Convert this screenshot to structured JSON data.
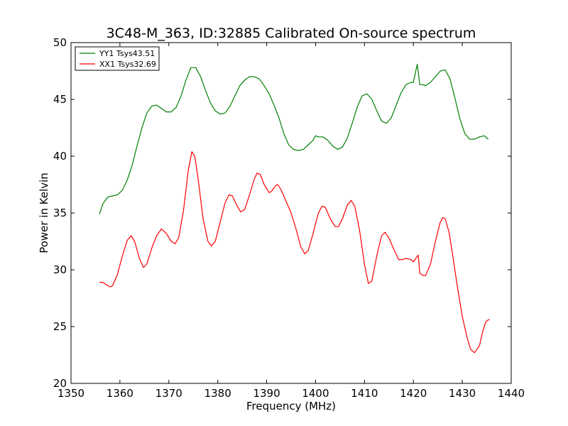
{
  "chart_data": {
    "type": "line",
    "title": "3C48-M_363, ID:32885 Calibrated On-source spectrum",
    "xlabel": "Frequency (MHz)",
    "ylabel": "Power in Kelvin",
    "xlim": [
      1350,
      1440
    ],
    "ylim": [
      20,
      50
    ],
    "xticks": [
      "1350",
      "1360",
      "1370",
      "1380",
      "1390",
      "1400",
      "1410",
      "1420",
      "1430",
      "1440"
    ],
    "yticks": [
      "20",
      "25",
      "30",
      "35",
      "40",
      "45",
      "50"
    ],
    "grid": false,
    "legend_position": "top-left",
    "series": [
      {
        "name": "YY1 Tsys43.51",
        "color": "#008000",
        "points": [
          [
            1355.8,
            34.9
          ],
          [
            1356.5,
            35.8
          ],
          [
            1357.5,
            36.4
          ],
          [
            1358.5,
            36.5
          ],
          [
            1359.5,
            36.6
          ],
          [
            1360.5,
            37.0
          ],
          [
            1361.5,
            37.9
          ],
          [
            1362.5,
            39.2
          ],
          [
            1363.5,
            40.9
          ],
          [
            1364.5,
            42.5
          ],
          [
            1365.5,
            43.8
          ],
          [
            1366.5,
            44.4
          ],
          [
            1367.5,
            44.5
          ],
          [
            1368.5,
            44.2
          ],
          [
            1369.5,
            43.9
          ],
          [
            1370.5,
            43.9
          ],
          [
            1371.5,
            44.3
          ],
          [
            1372.5,
            45.3
          ],
          [
            1373.5,
            46.7
          ],
          [
            1374.5,
            47.8
          ],
          [
            1375.5,
            47.8
          ],
          [
            1376.5,
            47.0
          ],
          [
            1377.5,
            45.8
          ],
          [
            1378.5,
            44.7
          ],
          [
            1379.5,
            44.0
          ],
          [
            1380.5,
            43.7
          ],
          [
            1381.5,
            43.8
          ],
          [
            1382.5,
            44.4
          ],
          [
            1383.5,
            45.3
          ],
          [
            1384.5,
            46.2
          ],
          [
            1385.5,
            46.7
          ],
          [
            1386.5,
            47.0
          ],
          [
            1387.5,
            47.0
          ],
          [
            1388.5,
            46.8
          ],
          [
            1389.5,
            46.2
          ],
          [
            1390.5,
            45.5
          ],
          [
            1391.5,
            44.5
          ],
          [
            1392.5,
            43.4
          ],
          [
            1393.5,
            42.0
          ],
          [
            1394.5,
            41.0
          ],
          [
            1395.5,
            40.6
          ],
          [
            1396.5,
            40.5
          ],
          [
            1397.5,
            40.6
          ],
          [
            1398.5,
            41.0
          ],
          [
            1399.5,
            41.4
          ],
          [
            1400.0,
            41.8
          ],
          [
            1400.5,
            41.7
          ],
          [
            1401.5,
            41.7
          ],
          [
            1402.5,
            41.4
          ],
          [
            1403.5,
            40.9
          ],
          [
            1404.5,
            40.6
          ],
          [
            1405.5,
            40.8
          ],
          [
            1406.5,
            41.6
          ],
          [
            1407.5,
            42.9
          ],
          [
            1408.5,
            44.3
          ],
          [
            1409.5,
            45.3
          ],
          [
            1410.5,
            45.5
          ],
          [
            1411.5,
            45.0
          ],
          [
            1412.5,
            44.0
          ],
          [
            1413.5,
            43.1
          ],
          [
            1414.5,
            42.9
          ],
          [
            1415.5,
            43.4
          ],
          [
            1416.5,
            44.5
          ],
          [
            1417.5,
            45.6
          ],
          [
            1418.5,
            46.3
          ],
          [
            1419.5,
            46.5
          ],
          [
            1420.0,
            46.5
          ],
          [
            1420.8,
            48.1
          ],
          [
            1421.3,
            46.3
          ],
          [
            1422.0,
            46.3
          ],
          [
            1422.5,
            46.2
          ],
          [
            1423.5,
            46.5
          ],
          [
            1424.5,
            47.0
          ],
          [
            1425.5,
            47.5
          ],
          [
            1426.5,
            47.6
          ],
          [
            1427.5,
            46.8
          ],
          [
            1428.5,
            45.1
          ],
          [
            1429.5,
            43.3
          ],
          [
            1430.5,
            42.0
          ],
          [
            1431.5,
            41.5
          ],
          [
            1432.5,
            41.5
          ],
          [
            1433.5,
            41.7
          ],
          [
            1434.5,
            41.8
          ],
          [
            1435.3,
            41.5
          ]
        ]
      },
      {
        "name": "XX1 Tsys32.69",
        "color": "#ff0000",
        "points": [
          [
            1355.8,
            28.9
          ],
          [
            1356.5,
            28.9
          ],
          [
            1357.5,
            28.6
          ],
          [
            1358.0,
            28.5
          ],
          [
            1358.5,
            28.6
          ],
          [
            1359.5,
            29.6
          ],
          [
            1360.5,
            31.2
          ],
          [
            1361.5,
            32.6
          ],
          [
            1362.3,
            33.0
          ],
          [
            1363.0,
            32.5
          ],
          [
            1364.0,
            31.0
          ],
          [
            1364.8,
            30.2
          ],
          [
            1365.5,
            30.5
          ],
          [
            1366.5,
            31.9
          ],
          [
            1367.5,
            33.0
          ],
          [
            1368.5,
            33.6
          ],
          [
            1369.5,
            33.2
          ],
          [
            1370.5,
            32.5
          ],
          [
            1371.3,
            32.3
          ],
          [
            1372.0,
            32.8
          ],
          [
            1373.0,
            35.2
          ],
          [
            1374.0,
            38.8
          ],
          [
            1374.7,
            40.4
          ],
          [
            1375.3,
            40.0
          ],
          [
            1376.0,
            38.0
          ],
          [
            1377.0,
            34.5
          ],
          [
            1378.0,
            32.5
          ],
          [
            1378.7,
            32.1
          ],
          [
            1379.5,
            32.5
          ],
          [
            1380.5,
            34.2
          ],
          [
            1381.5,
            35.9
          ],
          [
            1382.3,
            36.6
          ],
          [
            1383.0,
            36.5
          ],
          [
            1384.0,
            35.6
          ],
          [
            1384.7,
            35.1
          ],
          [
            1385.5,
            35.3
          ],
          [
            1386.5,
            36.6
          ],
          [
            1387.5,
            38.0
          ],
          [
            1388.0,
            38.5
          ],
          [
            1388.7,
            38.4
          ],
          [
            1389.5,
            37.5
          ],
          [
            1390.5,
            36.8
          ],
          [
            1391.0,
            36.9
          ],
          [
            1391.8,
            37.4
          ],
          [
            1392.3,
            37.5
          ],
          [
            1393.0,
            37.0
          ],
          [
            1394.0,
            36.0
          ],
          [
            1395.0,
            35.0
          ],
          [
            1396.0,
            33.6
          ],
          [
            1397.0,
            32.0
          ],
          [
            1397.8,
            31.4
          ],
          [
            1398.5,
            31.7
          ],
          [
            1399.5,
            33.2
          ],
          [
            1400.5,
            34.9
          ],
          [
            1401.3,
            35.6
          ],
          [
            1402.0,
            35.5
          ],
          [
            1403.0,
            34.5
          ],
          [
            1404.0,
            33.8
          ],
          [
            1404.7,
            33.8
          ],
          [
            1405.5,
            34.5
          ],
          [
            1406.5,
            35.7
          ],
          [
            1407.3,
            36.1
          ],
          [
            1408.0,
            35.6
          ],
          [
            1409.0,
            33.5
          ],
          [
            1410.0,
            30.5
          ],
          [
            1410.8,
            28.8
          ],
          [
            1411.5,
            29.0
          ],
          [
            1412.5,
            31.2
          ],
          [
            1413.5,
            33.0
          ],
          [
            1414.2,
            33.3
          ],
          [
            1415.0,
            32.8
          ],
          [
            1416.0,
            31.8
          ],
          [
            1417.0,
            30.9
          ],
          [
            1417.8,
            30.9
          ],
          [
            1418.5,
            31.0
          ],
          [
            1419.5,
            30.9
          ],
          [
            1420.0,
            30.7
          ],
          [
            1420.5,
            31.0
          ],
          [
            1421.0,
            31.3
          ],
          [
            1421.3,
            29.7
          ],
          [
            1422.0,
            29.5
          ],
          [
            1422.5,
            29.5
          ],
          [
            1423.5,
            30.5
          ],
          [
            1424.5,
            32.5
          ],
          [
            1425.5,
            34.2
          ],
          [
            1426.0,
            34.6
          ],
          [
            1426.5,
            34.5
          ],
          [
            1427.3,
            33.3
          ],
          [
            1428.0,
            31.4
          ],
          [
            1429.0,
            28.5
          ],
          [
            1430.0,
            25.9
          ],
          [
            1431.0,
            24.0
          ],
          [
            1431.7,
            23.0
          ],
          [
            1432.5,
            22.7
          ],
          [
            1433.5,
            23.3
          ],
          [
            1434.2,
            24.6
          ],
          [
            1434.8,
            25.4
          ],
          [
            1435.3,
            25.6
          ],
          [
            1435.6,
            25.6
          ]
        ]
      }
    ]
  }
}
